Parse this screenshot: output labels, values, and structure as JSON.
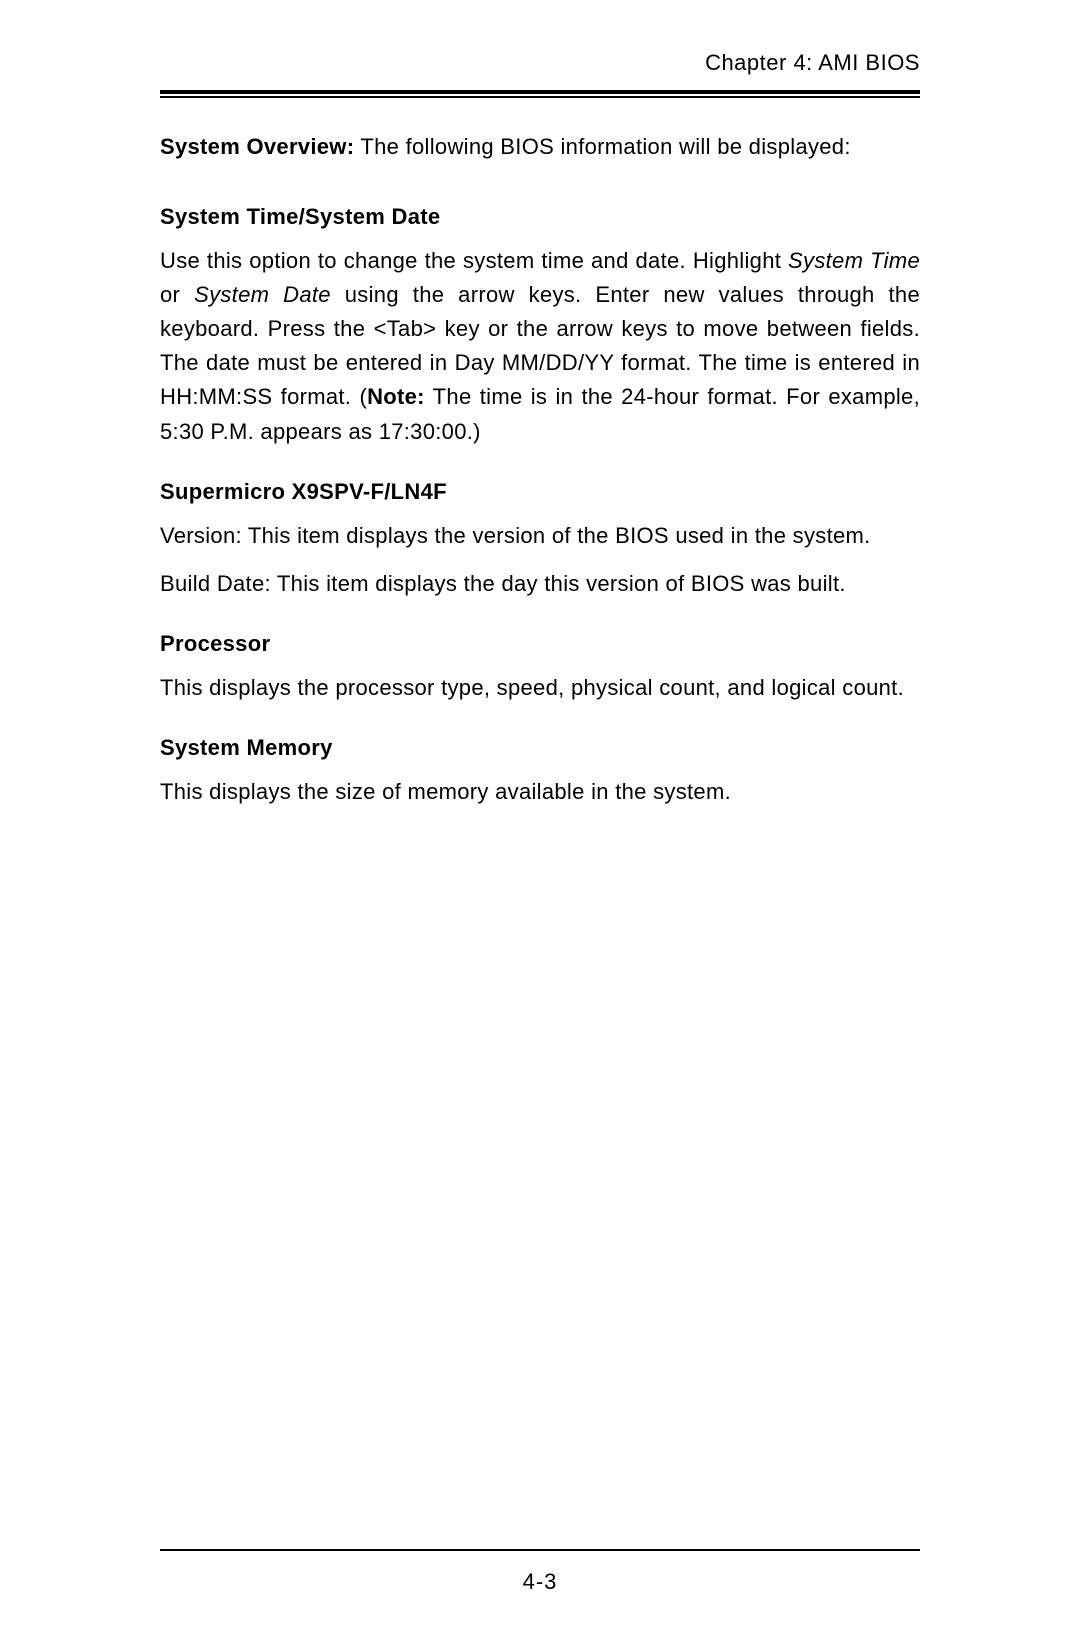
{
  "header": {
    "chapter": "Chapter 4: AMI BIOS"
  },
  "overview": {
    "label": "System Overview:",
    "text": " The following BIOS information will be displayed:"
  },
  "sections": {
    "timeDate": {
      "heading": "System Time/System Date",
      "body_pre": "Use this option to change the system time and date. Highlight ",
      "italic1": "System Time",
      "body_mid1": " or ",
      "italic2": "Sys­tem Date",
      "body_mid2": " using the arrow keys. Enter new values through the keyboard. Press the <Tab> key or the arrow keys to move between fields. The date must be entered in Day MM/DD/YY format. The time is entered in HH:MM:SS format. (",
      "note_bold": "Note:",
      "body_post": " The time is in the 24-hour format. For example, 5:30 P.M. appears as 17:30:00.)"
    },
    "supermicro": {
      "heading": "Supermicro X9SPV-F/LN4F",
      "line1": "Version: This item displays the version of the BIOS used in the system.",
      "line2": "Build Date: This item displays the day this version of BIOS was built."
    },
    "processor": {
      "heading": "Processor",
      "body": "This displays the processor type, speed, physical count, and logical count."
    },
    "memory": {
      "heading": "System Memory",
      "body": "This displays the size of memory available in the system."
    }
  },
  "footer": {
    "page": "4-3"
  }
}
